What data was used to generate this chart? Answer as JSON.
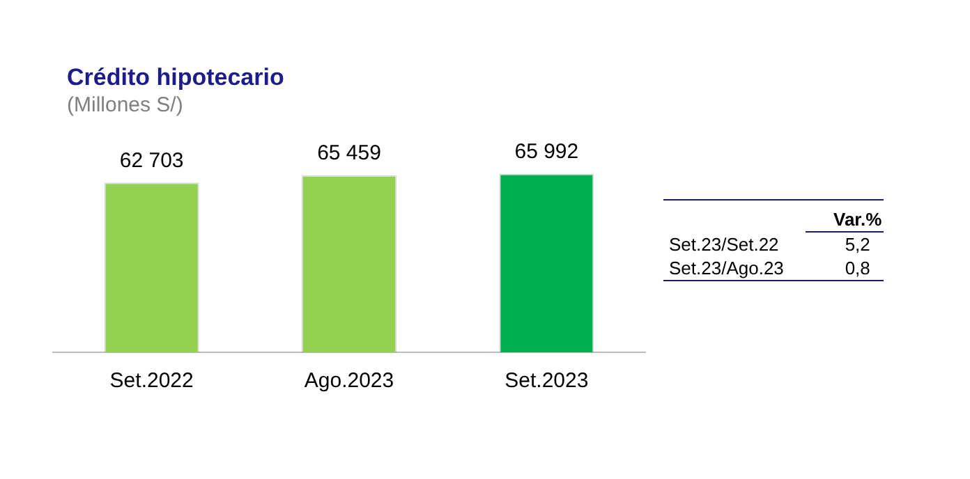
{
  "chart_data": {
    "type": "bar",
    "title": "Crédito hipotecario",
    "subtitle": "(Millones S/)",
    "categories": [
      "Set.2022",
      "Ago.2023",
      "Set.2023"
    ],
    "values": [
      62703,
      65459,
      65992
    ],
    "value_labels": [
      "62 703",
      "65 459",
      "65 992"
    ],
    "colors": [
      "#92d050",
      "#92d050",
      "#00b050"
    ],
    "annotations": [
      "Var.%",
      "Set.23/Set.22",
      "5,2",
      "Set.23/Ago.23",
      "0,8"
    ],
    "grid": false,
    "legend": false
  }
}
